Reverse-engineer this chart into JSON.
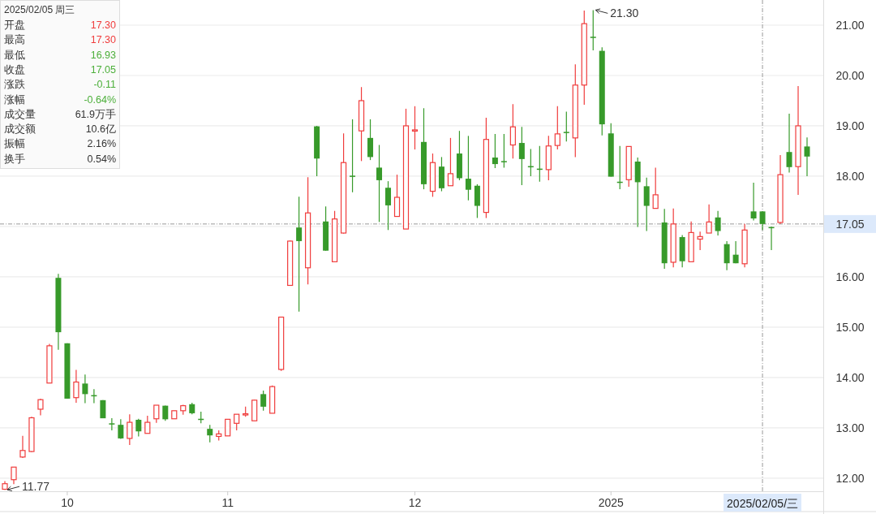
{
  "chart_data": [
    {
      "type": "candlestick",
      "categories": [
        null,
        null,
        null,
        null,
        null,
        null,
        null,
        "10",
        null,
        null,
        null,
        null,
        null,
        null,
        null,
        null,
        null,
        null,
        null,
        null,
        null,
        null,
        null,
        null,
        null,
        "11",
        null,
        null,
        null,
        null,
        null,
        null,
        null,
        null,
        null,
        null,
        null,
        null,
        null,
        null,
        null,
        null,
        null,
        null,
        null,
        null,
        "12",
        null,
        null,
        null,
        null,
        null,
        null,
        null,
        null,
        null,
        null,
        null,
        null,
        null,
        null,
        null,
        null,
        null,
        null,
        null,
        null,
        null,
        "2025",
        null,
        null,
        null,
        null,
        null,
        null,
        null,
        null,
        null,
        null,
        null,
        null,
        null,
        null,
        null,
        null,
        "2025/02/05/三",
        null,
        null,
        null,
        null,
        null
      ],
      "ohlc": [
        [
          11.78,
          11.94,
          11.77,
          11.89
        ],
        [
          11.97,
          12.22,
          11.88,
          12.22
        ],
        [
          12.42,
          12.84,
          12.4,
          12.55
        ],
        [
          12.53,
          13.22,
          12.52,
          13.2
        ],
        [
          13.37,
          13.58,
          13.25,
          13.56
        ],
        [
          13.89,
          14.67,
          13.89,
          14.63
        ],
        [
          15.98,
          16.06,
          14.55,
          14.9
        ],
        [
          14.68,
          14.68,
          13.58,
          13.58
        ],
        [
          13.6,
          14.15,
          13.5,
          13.91
        ],
        [
          13.88,
          14.06,
          13.49,
          13.67
        ],
        [
          13.65,
          13.77,
          13.49,
          13.63
        ],
        [
          13.55,
          13.55,
          13.19,
          13.19
        ],
        [
          13.09,
          13.19,
          12.95,
          13.07
        ],
        [
          13.06,
          13.17,
          12.78,
          12.79
        ],
        [
          12.79,
          13.27,
          12.66,
          13.11
        ],
        [
          13.16,
          13.18,
          12.83,
          12.93
        ],
        [
          12.89,
          13.24,
          12.89,
          13.11
        ],
        [
          13.18,
          13.45,
          13.1,
          13.45
        ],
        [
          13.44,
          13.44,
          13.14,
          13.17
        ],
        [
          13.18,
          13.34,
          13.18,
          13.34
        ],
        [
          13.34,
          13.46,
          13.26,
          13.44
        ],
        [
          13.47,
          13.5,
          13.27,
          13.29
        ],
        [
          13.18,
          13.32,
          13.09,
          13.16
        ],
        [
          12.98,
          13.06,
          12.71,
          12.85
        ],
        [
          12.83,
          12.95,
          12.75,
          12.88
        ],
        [
          12.84,
          13.17,
          12.84,
          13.17
        ],
        [
          13.09,
          13.27,
          12.95,
          13.27
        ],
        [
          13.26,
          13.42,
          13.22,
          13.28
        ],
        [
          13.14,
          13.56,
          13.14,
          13.55
        ],
        [
          13.67,
          13.74,
          13.34,
          13.42
        ],
        [
          13.29,
          13.84,
          13.29,
          13.82
        ],
        [
          14.16,
          15.21,
          14.13,
          15.2
        ],
        [
          15.83,
          16.72,
          15.82,
          16.71
        ],
        [
          16.98,
          17.59,
          15.31,
          16.71
        ],
        [
          16.18,
          17.98,
          15.85,
          17.27
        ],
        [
          18.99,
          19.0,
          18.0,
          18.35
        ],
        [
          17.1,
          17.4,
          16.52,
          16.52
        ],
        [
          16.3,
          17.31,
          16.3,
          17.15
        ],
        [
          16.87,
          18.85,
          16.86,
          18.27
        ],
        [
          18.01,
          19.13,
          17.68,
          17.99
        ],
        [
          18.9,
          19.77,
          18.3,
          19.5
        ],
        [
          18.76,
          19.13,
          18.32,
          18.38
        ],
        [
          18.17,
          18.62,
          17.09,
          17.92
        ],
        [
          17.77,
          17.9,
          16.93,
          17.42
        ],
        [
          17.2,
          18.03,
          17.2,
          17.58
        ],
        [
          16.95,
          19.34,
          16.95,
          19.0
        ],
        [
          18.9,
          19.39,
          18.53,
          18.92
        ],
        [
          18.68,
          19.35,
          17.74,
          17.84
        ],
        [
          17.7,
          18.45,
          17.59,
          18.27
        ],
        [
          18.19,
          18.38,
          17.7,
          17.76
        ],
        [
          17.81,
          18.76,
          17.81,
          18.05
        ],
        [
          18.45,
          18.9,
          17.92,
          17.96
        ],
        [
          17.95,
          18.8,
          17.52,
          17.73
        ],
        [
          17.81,
          17.84,
          17.17,
          17.41
        ],
        [
          17.28,
          19.16,
          17.17,
          18.73
        ],
        [
          18.37,
          18.84,
          18.16,
          18.24
        ],
        [
          18.3,
          18.84,
          18.17,
          18.28
        ],
        [
          18.62,
          19.43,
          18.35,
          18.98
        ],
        [
          18.66,
          18.98,
          17.82,
          18.34
        ],
        [
          18.2,
          18.54,
          18.0,
          18.18
        ],
        [
          18.15,
          18.6,
          17.89,
          18.13
        ],
        [
          18.13,
          18.8,
          17.92,
          18.6
        ],
        [
          18.61,
          19.39,
          18.53,
          18.84
        ],
        [
          18.88,
          19.28,
          18.69,
          18.86
        ],
        [
          18.76,
          20.22,
          18.38,
          19.81
        ],
        [
          19.81,
          21.29,
          19.42,
          21.03
        ],
        [
          20.77,
          21.3,
          20.5,
          20.75
        ],
        [
          20.49,
          20.56,
          18.81,
          19.03
        ],
        [
          18.85,
          19.05,
          17.99,
          17.99
        ],
        [
          17.89,
          18.6,
          17.74,
          17.87
        ],
        [
          17.93,
          18.59,
          17.79,
          18.59
        ],
        [
          18.29,
          18.37,
          16.99,
          17.88
        ],
        [
          17.8,
          17.97,
          16.91,
          17.41
        ],
        [
          17.36,
          18.17,
          17.36,
          17.63
        ],
        [
          17.08,
          17.35,
          16.16,
          16.27
        ],
        [
          16.29,
          17.36,
          16.19,
          17.05
        ],
        [
          16.79,
          16.83,
          16.19,
          16.31
        ],
        [
          16.3,
          17.1,
          16.3,
          16.88
        ],
        [
          16.75,
          16.9,
          16.53,
          16.8
        ],
        [
          16.87,
          17.44,
          16.87,
          17.09
        ],
        [
          17.18,
          17.31,
          16.82,
          16.91
        ],
        [
          16.65,
          16.71,
          16.13,
          16.27
        ],
        [
          16.44,
          16.71,
          16.27,
          16.27
        ],
        [
          16.26,
          17.05,
          16.19,
          16.93
        ],
        [
          17.3,
          17.87,
          17.12,
          17.16
        ],
        [
          17.3,
          17.3,
          16.93,
          17.05
        ],
        [
          16.99,
          17.0,
          16.53,
          16.97
        ],
        [
          17.08,
          18.42,
          17.05,
          18.03
        ],
        [
          18.48,
          19.24,
          18.07,
          18.18
        ],
        [
          18.19,
          19.79,
          17.63,
          19.0
        ],
        [
          18.59,
          18.77,
          18.0,
          18.39
        ]
      ],
      "colors": [
        "#f03c3c",
        "#f03c3c",
        "#f03c3c",
        "#f03c3c",
        "#f03c3c",
        "#f03c3c",
        "#379a2a",
        "#379a2a",
        "#f03c3c",
        "#379a2a",
        "#379a2a",
        "#379a2a",
        "#379a2a",
        "#379a2a",
        "#f03c3c",
        "#379a2a",
        "#f03c3c",
        "#f03c3c",
        "#379a2a",
        "#f03c3c",
        "#f03c3c",
        "#379a2a",
        "#379a2a",
        "#379a2a",
        "#f03c3c",
        "#f03c3c",
        "#f03c3c",
        "#f03c3c",
        "#f03c3c",
        "#379a2a",
        "#f03c3c",
        "#f03c3c",
        "#f03c3c",
        "#379a2a",
        "#f03c3c",
        "#379a2a",
        "#379a2a",
        "#f03c3c",
        "#f03c3c",
        "#379a2a",
        "#f03c3c",
        "#379a2a",
        "#379a2a",
        "#379a2a",
        "#f03c3c",
        "#f03c3c",
        "#f03c3c",
        "#379a2a",
        "#f03c3c",
        "#379a2a",
        "#f03c3c",
        "#379a2a",
        "#379a2a",
        "#379a2a",
        "#f03c3c",
        "#379a2a",
        "#379a2a",
        "#f03c3c",
        "#379a2a",
        "#379a2a",
        "#379a2a",
        "#f03c3c",
        "#f03c3c",
        "#379a2a",
        "#f03c3c",
        "#f03c3c",
        "#379a2a",
        "#379a2a",
        "#379a2a",
        "#379a2a",
        "#f03c3c",
        "#379a2a",
        "#379a2a",
        "#f03c3c",
        "#379a2a",
        "#f03c3c",
        "#379a2a",
        "#f03c3c",
        "#f03c3c",
        "#f03c3c",
        "#379a2a",
        "#379a2a",
        "#379a2a",
        "#f03c3c",
        "#379a2a",
        "#379a2a",
        "#379a2a",
        "#f03c3c",
        "#379a2a",
        "#f03c3c",
        "#379a2a"
      ],
      "ylim": [
        11.74,
        21.5
      ],
      "yticks": [
        {
          "value": 12,
          "label": "12.00"
        },
        {
          "value": 13,
          "label": "13.00"
        },
        {
          "value": 14,
          "label": "14.00"
        },
        {
          "value": 15,
          "label": "15.00"
        },
        {
          "value": 16,
          "label": "16.00"
        },
        {
          "value": 17,
          "label": null
        },
        {
          "value": 18,
          "label": "18.00"
        },
        {
          "value": 19,
          "label": "19.00"
        },
        {
          "value": 20,
          "label": "20.00"
        },
        {
          "value": 21,
          "label": "21.00"
        }
      ],
      "grid": "y",
      "ref_lines": [
        {
          "axis": "y",
          "value": 17.05,
          "label": "17.05",
          "color": "#999999",
          "line_style": "dashed"
        },
        {
          "axis": "x",
          "value": "2025/02/05/三",
          "color": "#999999",
          "line_style": "dashed"
        }
      ],
      "annotations": [
        "21.30",
        "11.77"
      ]
    },
    {
      "type": "other",
      "title": "2025/02/05 周三",
      "categories": [
        "开盘",
        "最高",
        "最低",
        "收盘",
        "涨跌",
        "涨幅",
        "成交量",
        "成交额",
        "振幅",
        "换手"
      ],
      "value_labels": [
        "17.30",
        "17.30",
        "16.93",
        "17.05",
        "-0.11",
        "-0.64%",
        "61.9万手",
        "10.6亿",
        "2.16%",
        "0.54%"
      ],
      "colors": [
        "#f03c3c",
        "#f03c3c",
        "#4caf3a",
        "#4caf3a",
        "#4caf3a",
        "#4caf3a",
        "#333333",
        "#333333",
        "#333333",
        "#333333"
      ]
    }
  ]
}
